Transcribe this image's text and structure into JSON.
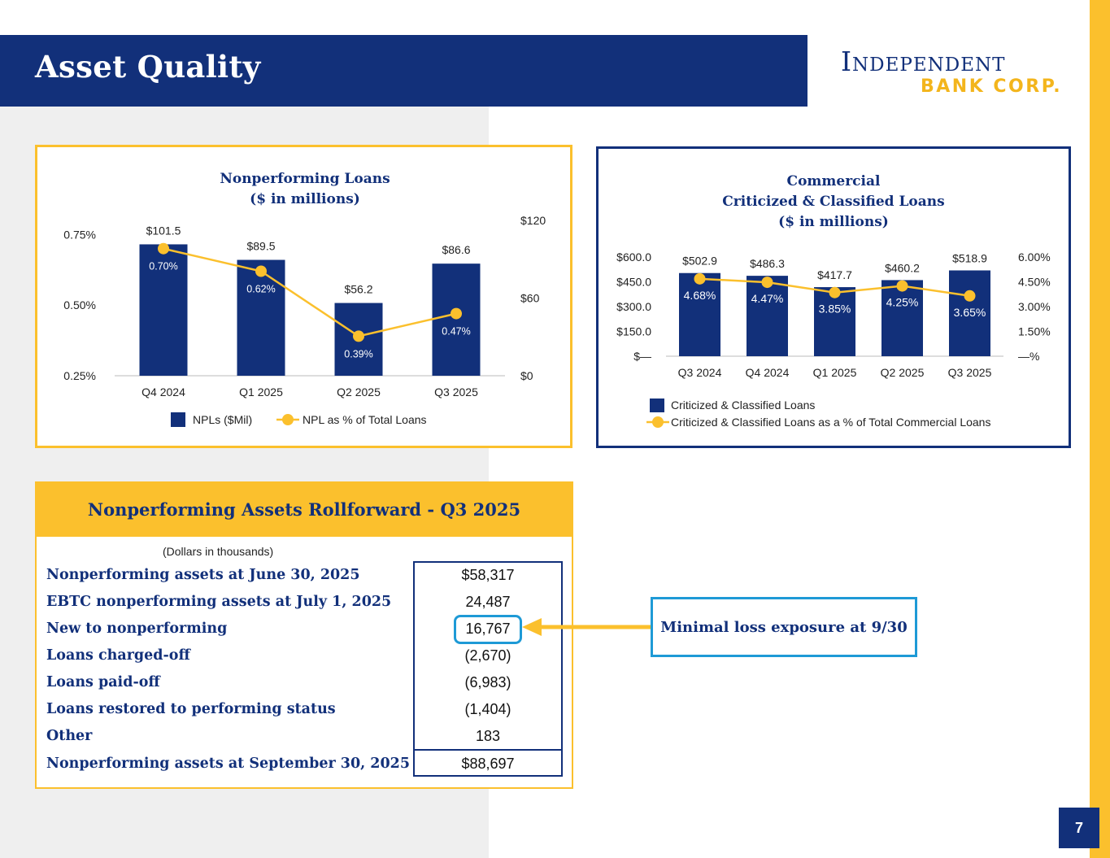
{
  "header": {
    "title": "Asset Quality"
  },
  "logo": {
    "line1": "Independent",
    "line2": "BANK CORP."
  },
  "colors": {
    "navy": "#12307a",
    "gold": "#fbc02d",
    "line": "#fbc02d",
    "accent": "#1e9ad6"
  },
  "chart_data": [
    {
      "id": "npl",
      "type": "bar",
      "title_lines": [
        "Nonperforming Loans",
        "($ in millions)"
      ],
      "categories": [
        "Q4 2024",
        "Q1 2025",
        "Q2 2025",
        "Q3 2025"
      ],
      "series": [
        {
          "name": "NPLs ($Mil)",
          "kind": "bar",
          "axis": "right",
          "values": [
            101.5,
            89.5,
            56.2,
            86.6
          ],
          "labels": [
            "$101.5",
            "$89.5",
            "$56.2",
            "$86.6"
          ]
        },
        {
          "name": "NPL as % of Total Loans",
          "kind": "line",
          "axis": "left",
          "values": [
            0.7,
            0.62,
            0.39,
            0.47
          ],
          "labels": [
            "0.70%",
            "0.62%",
            "0.39%",
            "0.47%"
          ]
        }
      ],
      "left_axis": {
        "ticks": [
          0.25,
          0.5,
          0.75
        ],
        "tick_labels": [
          "0.25%",
          "0.50%",
          "0.75%"
        ],
        "range": [
          0.25,
          0.8
        ]
      },
      "right_axis": {
        "ticks": [
          0,
          60,
          120
        ],
        "tick_labels": [
          "$0",
          "$60",
          "$120"
        ],
        "range": [
          0,
          120
        ]
      },
      "legend": [
        "NPLs ($Mil)",
        "NPL as % of Total Loans"
      ]
    },
    {
      "id": "cc",
      "type": "bar",
      "title_lines": [
        "Commercial",
        "Criticized & Classified Loans",
        "($ in millions)"
      ],
      "categories": [
        "Q3 2024",
        "Q4 2024",
        "Q1 2025",
        "Q2 2025",
        "Q3 2025"
      ],
      "series": [
        {
          "name": "Criticized & Classified Loans",
          "kind": "bar",
          "axis": "left",
          "values": [
            502.9,
            486.3,
            417.7,
            460.2,
            518.9
          ],
          "labels": [
            "$502.9",
            "$486.3",
            "$417.7",
            "$460.2",
            "$518.9"
          ]
        },
        {
          "name": "Criticized & Classified Loans as a % of Total Commercial Loans",
          "kind": "line",
          "axis": "right",
          "values": [
            4.68,
            4.47,
            3.85,
            4.25,
            3.65
          ],
          "labels": [
            "4.68%",
            "4.47%",
            "3.85%",
            "4.25%",
            "3.65%"
          ]
        }
      ],
      "left_axis": {
        "ticks": [
          0,
          150,
          300,
          450,
          600
        ],
        "tick_labels": [
          "$—",
          "$150.0",
          "$300.0",
          "$450.0",
          "$600.0"
        ],
        "range": [
          0,
          600
        ]
      },
      "right_axis": {
        "ticks": [
          0,
          1.5,
          3.0,
          4.5,
          6.0
        ],
        "tick_labels": [
          "—%",
          "1.50%",
          "3.00%",
          "4.50%",
          "6.00%"
        ],
        "range": [
          0,
          6
        ]
      },
      "legend": [
        "Criticized & Classified Loans",
        "Criticized & Classified Loans as a % of Total Commercial Loans"
      ]
    }
  ],
  "rollforward": {
    "title": "Nonperforming Assets Rollforward - Q3 2025",
    "units": "(Dollars in thousands)",
    "rows": [
      {
        "label": "Nonperforming assets at June 30, 2025",
        "value": "$58,317"
      },
      {
        "label": "EBTC nonperforming assets at July 1, 2025",
        "value": "24,487"
      },
      {
        "label": "New to nonperforming",
        "value": "16,767"
      },
      {
        "label": "Loans charged-off",
        "value": "(2,670)"
      },
      {
        "label": "Loans paid-off",
        "value": "(6,983)"
      },
      {
        "label": "Loans restored to performing status",
        "value": "(1,404)"
      },
      {
        "label": "Other",
        "value": "183"
      },
      {
        "label": "Nonperforming assets at September 30, 2025",
        "value": "$88,697"
      }
    ]
  },
  "callout": {
    "text": "Minimal loss exposure at 9/30"
  },
  "page": {
    "number": "7"
  }
}
